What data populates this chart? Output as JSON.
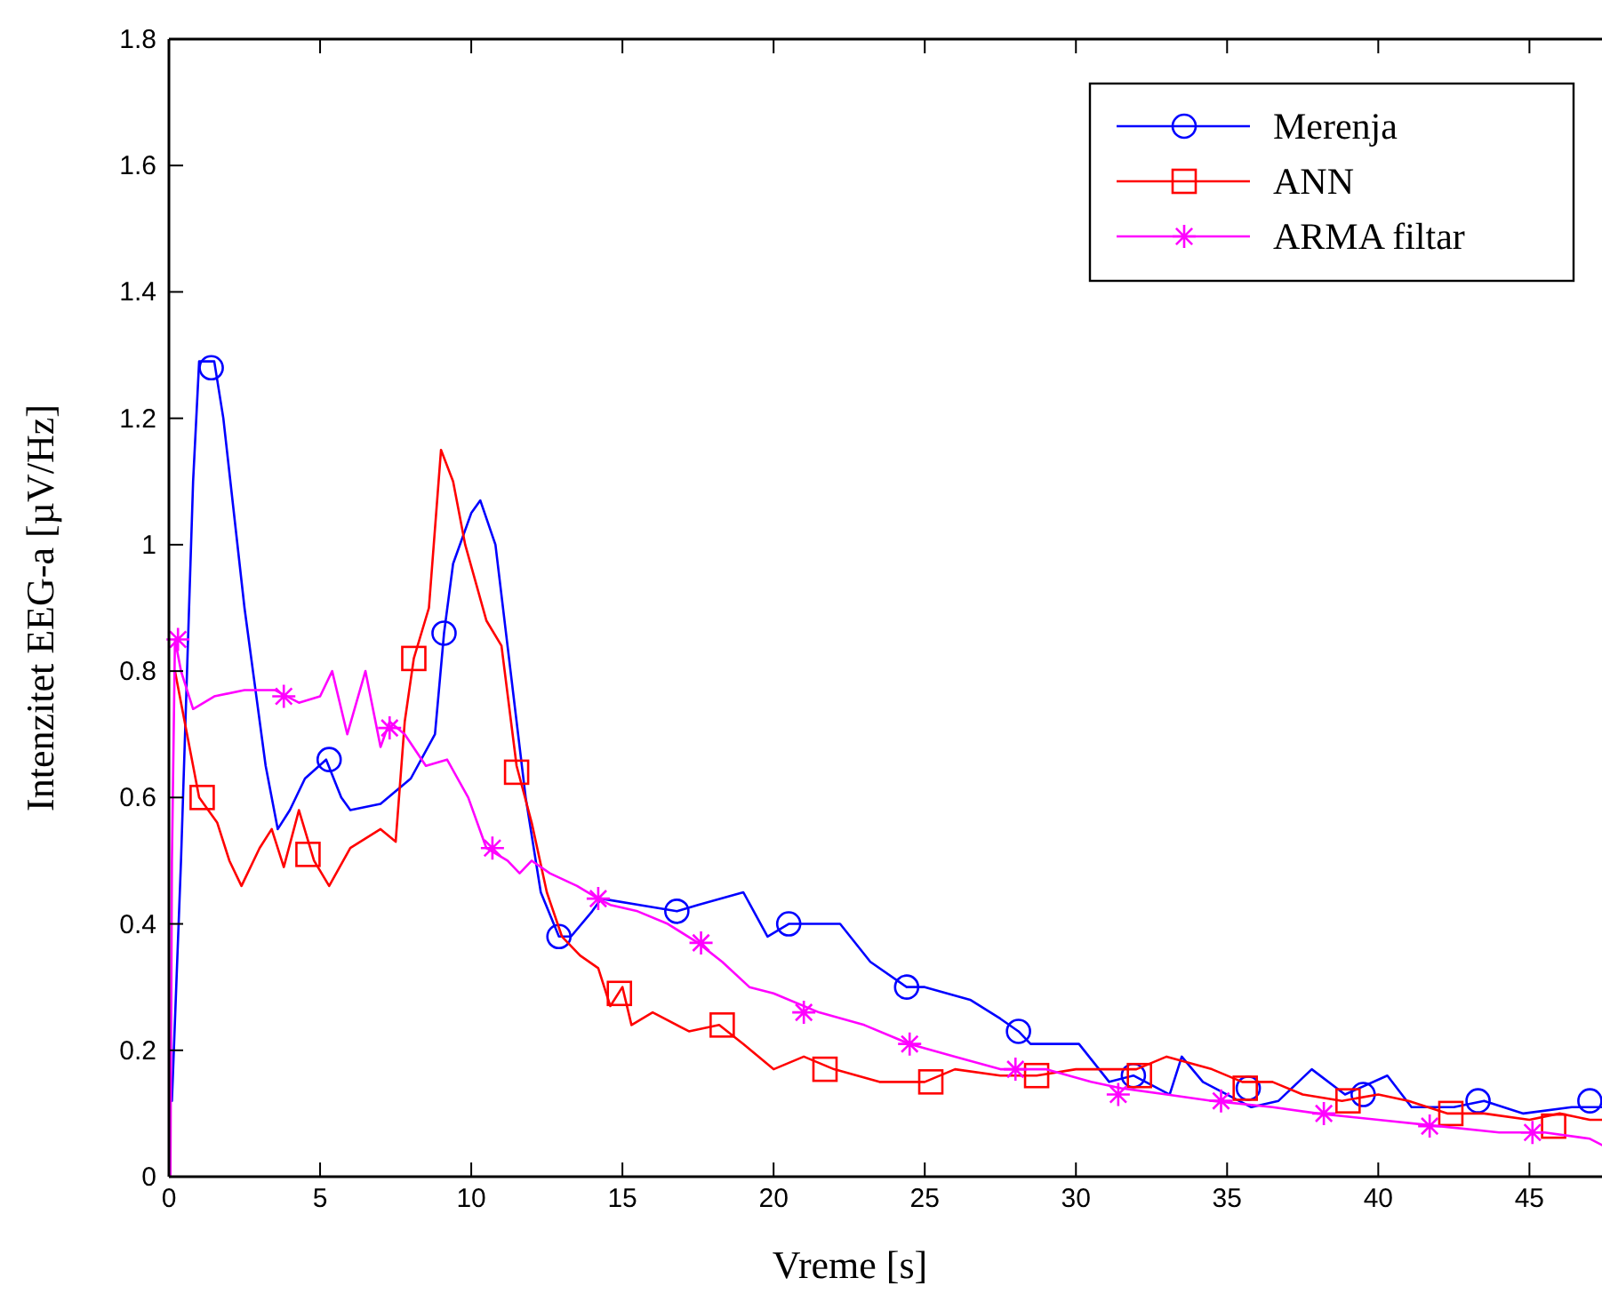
{
  "chart_data": {
    "type": "line",
    "xlabel": "Vreme [s]",
    "ylabel": "Intenzitet EEG-a [µV/Hz]",
    "xlim": [
      0,
      47.4
    ],
    "ylim": [
      0,
      1.8
    ],
    "xticks": [
      0,
      5,
      10,
      15,
      20,
      25,
      30,
      35,
      40,
      45
    ],
    "yticks": [
      0,
      0.2,
      0.4,
      0.6,
      0.8,
      1,
      1.2,
      1.4,
      1.6,
      1.8
    ],
    "grid": false,
    "legend": "top right",
    "line_style": "solid",
    "series": [
      {
        "name": "Merenja",
        "color": "#0000ff",
        "x": [
          0.1,
          0.4,
          0.6,
          0.8,
          1.0,
          1.5,
          1.8,
          2.5,
          3.2,
          3.6,
          4.0,
          4.5,
          5.2,
          5.7,
          6.0,
          7.0,
          8.0,
          8.8,
          9.1,
          9.4,
          10.0,
          10.3,
          10.8,
          11.3,
          11.8,
          12.3,
          12.9,
          13.3,
          14.0,
          14.3,
          16.8,
          17.5,
          19.0,
          19.8,
          20.5,
          22.2,
          23.2,
          24.4,
          25.0,
          26.5,
          27.5,
          28.1,
          28.5,
          30.1,
          31.1,
          31.9,
          33.1,
          33.5,
          34.2,
          35.0,
          35.8,
          36.7,
          37.8,
          38.9,
          40.3,
          41.1,
          42.5,
          43.5,
          44.8,
          46.4,
          47.4
        ],
        "values": [
          0.12,
          0.5,
          0.8,
          1.1,
          1.29,
          1.29,
          1.2,
          0.9,
          0.65,
          0.55,
          0.58,
          0.63,
          0.66,
          0.6,
          0.58,
          0.59,
          0.63,
          0.7,
          0.86,
          0.97,
          1.05,
          1.07,
          1.0,
          0.8,
          0.6,
          0.45,
          0.38,
          0.38,
          0.42,
          0.44,
          0.42,
          0.43,
          0.45,
          0.38,
          0.4,
          0.4,
          0.34,
          0.3,
          0.3,
          0.28,
          0.25,
          0.23,
          0.21,
          0.21,
          0.15,
          0.16,
          0.13,
          0.19,
          0.15,
          0.13,
          0.11,
          0.12,
          0.17,
          0.13,
          0.16,
          0.11,
          0.11,
          0.12,
          0.1,
          0.11,
          0.11
        ]
      },
      {
        "color": "#0000ff",
        "type": "scatter",
        "marker": "circle",
        "x": [
          1.4,
          5.3,
          9.1,
          12.9,
          16.8,
          20.5,
          24.4,
          28.1,
          31.9,
          35.7,
          39.5,
          43.3,
          47.0
        ],
        "values": [
          1.28,
          0.66,
          0.86,
          0.38,
          0.42,
          0.4,
          0.3,
          0.23,
          0.16,
          0.14,
          0.13,
          0.12,
          0.12
        ]
      },
      {
        "name": "ANN",
        "color": "#ff0000",
        "x": [
          0.2,
          1.0,
          1.6,
          2.0,
          2.4,
          3.0,
          3.4,
          3.8,
          4.3,
          4.8,
          5.3,
          6.0,
          7.0,
          7.5,
          7.8,
          8.1,
          8.6,
          9.0,
          9.4,
          9.8,
          10.5,
          11.0,
          11.5,
          12.0,
          12.5,
          13.0,
          13.6,
          14.2,
          14.6,
          15.0,
          15.3,
          16.0,
          17.2,
          18.2,
          19.0,
          20.0,
          21.0,
          22.0,
          23.5,
          25.0,
          26.0,
          27.5,
          28.7,
          30.0,
          31.0,
          32.0,
          33.0,
          34.5,
          35.5,
          36.5,
          37.5,
          38.8,
          40.0,
          41.0,
          42.3,
          43.5,
          45.0,
          46.0,
          47.0,
          47.4
        ],
        "values": [
          0.8,
          0.6,
          0.56,
          0.5,
          0.46,
          0.52,
          0.55,
          0.49,
          0.58,
          0.5,
          0.46,
          0.52,
          0.55,
          0.53,
          0.72,
          0.82,
          0.9,
          1.15,
          1.1,
          1.0,
          0.88,
          0.84,
          0.65,
          0.56,
          0.45,
          0.38,
          0.35,
          0.33,
          0.27,
          0.3,
          0.24,
          0.26,
          0.23,
          0.24,
          0.21,
          0.17,
          0.19,
          0.17,
          0.15,
          0.15,
          0.17,
          0.16,
          0.16,
          0.17,
          0.17,
          0.17,
          0.19,
          0.17,
          0.15,
          0.15,
          0.13,
          0.12,
          0.13,
          0.12,
          0.1,
          0.1,
          0.09,
          0.1,
          0.09,
          0.09
        ]
      },
      {
        "color": "#ff0000",
        "type": "scatter",
        "marker": "square",
        "x": [
          1.1,
          4.6,
          8.1,
          11.5,
          14.9,
          18.3,
          21.7,
          25.2,
          28.7,
          32.1,
          35.6,
          39.0,
          42.4,
          45.8
        ],
        "values": [
          0.6,
          0.51,
          0.82,
          0.64,
          0.29,
          0.24,
          0.17,
          0.15,
          0.16,
          0.16,
          0.14,
          0.12,
          0.1,
          0.08
        ]
      },
      {
        "name": "ARMA filtar",
        "color": "#ff00ff",
        "x": [
          0.05,
          0.1,
          0.2,
          0.4,
          0.8,
          1.5,
          2.5,
          3.5,
          4.3,
          5.0,
          5.4,
          5.9,
          6.5,
          7.0,
          7.3,
          7.8,
          8.5,
          9.2,
          9.9,
          10.5,
          11.2,
          11.6,
          12.0,
          12.6,
          13.5,
          14.2,
          14.6,
          15.5,
          16.5,
          17.5,
          18.3,
          19.2,
          20.0,
          21.5,
          23.0,
          24.5,
          26.0,
          27.5,
          29.0,
          30.5,
          31.5,
          33.0,
          34.5,
          36.5,
          38.0,
          40.0,
          42.0,
          44.0,
          45.5,
          47.0,
          47.4
        ],
        "values": [
          0,
          0.5,
          0.85,
          0.8,
          0.74,
          0.76,
          0.77,
          0.77,
          0.75,
          0.76,
          0.8,
          0.7,
          0.8,
          0.68,
          0.72,
          0.7,
          0.65,
          0.66,
          0.6,
          0.52,
          0.5,
          0.48,
          0.5,
          0.48,
          0.46,
          0.44,
          0.43,
          0.42,
          0.4,
          0.37,
          0.34,
          0.3,
          0.29,
          0.26,
          0.24,
          0.21,
          0.19,
          0.17,
          0.17,
          0.15,
          0.14,
          0.13,
          0.12,
          0.11,
          0.1,
          0.09,
          0.08,
          0.07,
          0.07,
          0.06,
          0.05
        ]
      },
      {
        "color": "#ff00ff",
        "type": "scatter",
        "marker": "cross",
        "x": [
          0.3,
          3.8,
          7.3,
          10.7,
          14.2,
          17.6,
          21.0,
          24.5,
          28.0,
          31.4,
          34.8,
          38.2,
          41.7,
          45.1
        ],
        "values": [
          0.85,
          0.76,
          0.71,
          0.52,
          0.44,
          0.37,
          0.26,
          0.21,
          0.17,
          0.13,
          0.12,
          0.1,
          0.08,
          0.07
        ]
      }
    ]
  }
}
